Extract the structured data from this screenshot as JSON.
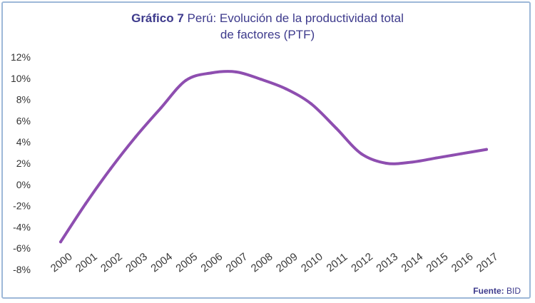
{
  "title": {
    "lead": "Gráfico 7",
    "line1": "Perú: Evolución de la productividad total",
    "line2": "de factores (PTF)"
  },
  "source": {
    "label": "Fuente:",
    "value": "BID"
  },
  "colors": {
    "series": "#8e4eb0",
    "title": "#3d3a8c",
    "border": "#9db8d8"
  },
  "chart_data": {
    "type": "line",
    "title": "Gráfico 7 Perú: Evolución de la productividad total de factores (PTF)",
    "xlabel": "",
    "ylabel": "",
    "ylim": [
      -8,
      12
    ],
    "yticks": [
      -8,
      -6,
      -4,
      -2,
      0,
      2,
      4,
      6,
      8,
      10,
      12
    ],
    "ytick_labels": [
      "-8%",
      "-6%",
      "-4%",
      "-2%",
      "0%",
      "2%",
      "4%",
      "6%",
      "8%",
      "10%",
      "12%"
    ],
    "grid": false,
    "legend": "none",
    "categories": [
      "2000",
      "2001",
      "2002",
      "2003",
      "2004",
      "2005",
      "2006",
      "2007",
      "2008",
      "2009",
      "2010",
      "2011",
      "2012",
      "2013",
      "2014",
      "2015",
      "2016",
      "2017"
    ],
    "series": [
      {
        "name": "",
        "x": [
          2000,
          2001,
          2002,
          2003,
          2004,
          2005,
          2006,
          2007,
          2008,
          2009,
          2010,
          2011,
          2012,
          2013,
          2014,
          2015,
          2016,
          2017
        ],
        "values": [
          -5.4,
          -1.8,
          1.5,
          4.5,
          7.2,
          9.8,
          10.5,
          10.6,
          9.9,
          9.0,
          7.6,
          5.3,
          2.9,
          2.0,
          2.1,
          2.5,
          2.9,
          3.3
        ]
      }
    ]
  }
}
